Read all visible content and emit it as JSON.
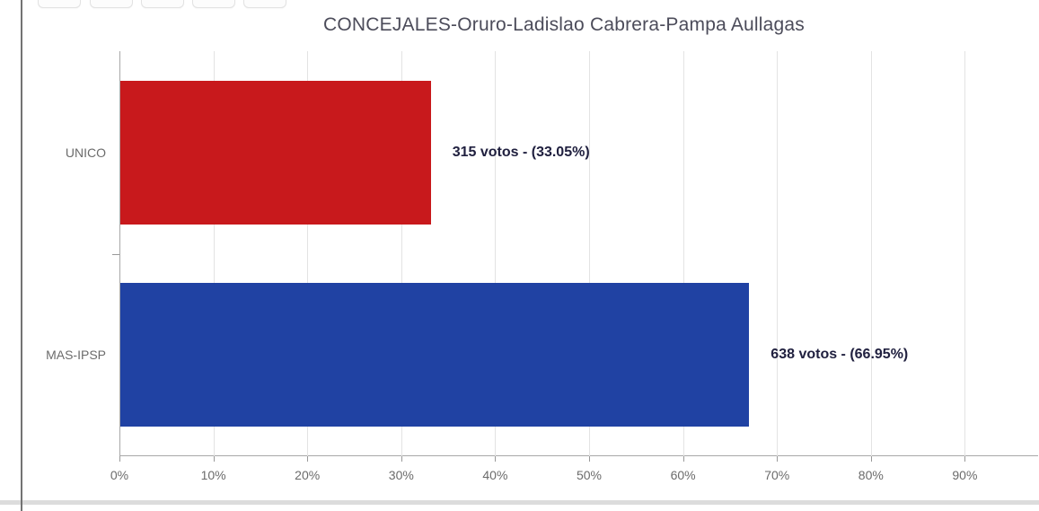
{
  "toolbar": {
    "buttons": [
      {
        "label": ""
      },
      {
        "label": ""
      },
      {
        "label": ""
      },
      {
        "label": ""
      },
      {
        "label": ""
      }
    ]
  },
  "chart_data": {
    "type": "bar",
    "orientation": "horizontal",
    "title": "CONCEJALES-Oruro-Ladislao Cabrera-Pampa Aullagas",
    "categories": [
      "UNICO",
      "MAS-IPSP"
    ],
    "values": [
      33.05,
      66.95
    ],
    "votes": [
      315,
      638
    ],
    "data_labels": [
      "315 votos - (33.05%)",
      "638 votos - (66.95%)"
    ],
    "bar_colors": [
      "#c8191c",
      "#2042a3"
    ],
    "x_ticks": [
      {
        "value": 0,
        "label": "0%"
      },
      {
        "value": 10,
        "label": "10%"
      },
      {
        "value": 20,
        "label": "20%"
      },
      {
        "value": 30,
        "label": "30%"
      },
      {
        "value": 40,
        "label": "40%"
      },
      {
        "value": 50,
        "label": "50%"
      },
      {
        "value": 60,
        "label": "60%"
      },
      {
        "value": 70,
        "label": "70%"
      },
      {
        "value": 80,
        "label": "80%"
      },
      {
        "value": 90,
        "label": "90%"
      }
    ],
    "xlim": [
      0,
      97.8
    ],
    "ylabel": "",
    "xlabel": "",
    "grid": true,
    "legend": "none",
    "colors": {
      "gridline": "#e3e3e3",
      "axis": "#a8a8a8",
      "tick": "#999999",
      "tick_label": "#6b6b6b",
      "category_label": "#6b6b6b",
      "title": "#4c4c5a",
      "data_label": "#20203f",
      "background": "#ffffff"
    }
  }
}
